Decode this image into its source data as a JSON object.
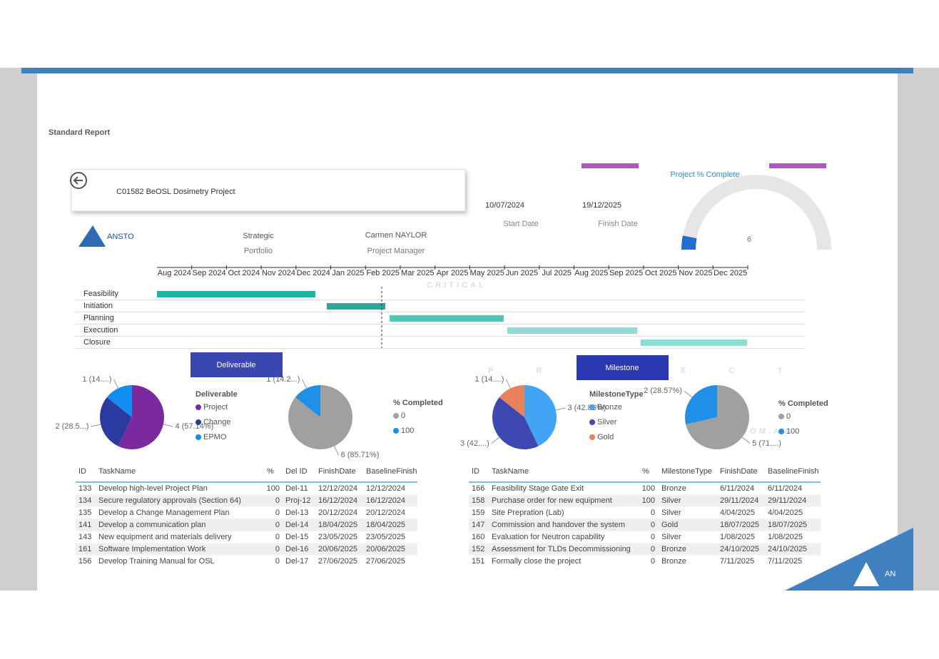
{
  "slide": {
    "title": "Standard Report",
    "watermark": [
      "CRITICAL",
      "PROJECT",
      ".COM.AU"
    ],
    "corner_logo": "AN"
  },
  "report": {
    "project": "C01582 BeOSL Dosimetry Project",
    "start_date": "10/07/2024",
    "start_label": "Start Date",
    "finish_date": "19/12/2025",
    "finish_label": "Finish Date",
    "logo": "ANSTO",
    "portfolio": "Strategic",
    "portfolio_label": "Portfolio",
    "manager": "Carmen NAYLOR",
    "manager_label": "Project Manager",
    "percent_title": "Project % Complete",
    "percent_value": 6
  },
  "gantt": {
    "months": [
      "Aug 2024",
      "Sep 2024",
      "Oct 2024",
      "Nov 2024",
      "Dec 2024",
      "Jan 2025",
      "Feb 2025",
      "Mar 2025",
      "Apr 2025",
      "May 2025",
      "Jun 2025",
      "Jul 2025",
      "Aug 2025",
      "Sep 2025",
      "Oct 2025",
      "Nov 2025",
      "Dec 2025"
    ],
    "phases": [
      "Feasibility",
      "Initiation",
      "Planning",
      "Execution",
      "Closure"
    ]
  },
  "sections": {
    "deliverable": "Deliverable",
    "milestone": "Milestone"
  },
  "pies": [
    {
      "legend_title": "Deliverable",
      "slices": [
        {
          "name": "Project",
          "value": 4,
          "pct": "(57.14%)",
          "color": "#7a2a9e"
        },
        {
          "name": "Change",
          "value": 2,
          "pct": "(28.5...)",
          "color": "#2a3aa0"
        },
        {
          "name": "EPMO",
          "value": 1,
          "pct": "(14....)",
          "color": "#128cf0"
        }
      ]
    },
    {
      "legend_title": "% Completed",
      "slices": [
        {
          "name": "0",
          "value": 6,
          "pct": "(85.71%)",
          "color": "#a0a0a0"
        },
        {
          "name": "100",
          "value": 1,
          "pct": "(14.2...)",
          "color": "#1f8fe8"
        }
      ]
    },
    {
      "legend_title": "MilestoneType",
      "slices": [
        {
          "name": "Bronze",
          "value": 3,
          "pct": "(42.86%)",
          "color": "#42a4f4"
        },
        {
          "name": "Silver",
          "value": 3,
          "pct": "(42....)",
          "color": "#3e48b2"
        },
        {
          "name": "Gold",
          "value": 1,
          "pct": "(14....)",
          "color": "#e8825a"
        }
      ]
    },
    {
      "legend_title": "% Completed",
      "slices": [
        {
          "name": "0",
          "value": 5,
          "pct": "(71....)",
          "color": "#a0a0a0"
        },
        {
          "name": "100",
          "value": 2,
          "pct": "(28.57%)",
          "color": "#1f8fe8"
        }
      ]
    }
  ],
  "tables": [
    {
      "columns": [
        "ID",
        "TaskName",
        "%",
        "Del ID",
        "FinishDate",
        "BaselineFinish"
      ],
      "rows": [
        [
          133,
          "Develop high-level Project Plan",
          100,
          "Del-11",
          "12/12/2024",
          "12/12/2024"
        ],
        [
          134,
          "Secure regulatory approvals (Section 64)",
          0,
          "Proj-12",
          "16/12/2024",
          "16/12/2024"
        ],
        [
          135,
          "Develop a Change Management Plan",
          0,
          "Del-13",
          "20/12/2024",
          "20/12/2024"
        ],
        [
          141,
          "Develop a communication plan",
          0,
          "Del-14",
          "18/04/2025",
          "18/04/2025"
        ],
        [
          143,
          "New equipment and materials delivery",
          0,
          "Del-15",
          "23/05/2025",
          "23/05/2025"
        ],
        [
          161,
          "Software Implementation Work",
          0,
          "Del-16",
          "20/06/2025",
          "20/06/2025"
        ],
        [
          156,
          "Develop Training Manual for OSL",
          0,
          "Del-17",
          "27/06/2025",
          "27/06/2025"
        ]
      ]
    },
    {
      "columns": [
        "ID",
        "TaskName",
        "%",
        "MilestoneType",
        "FinishDate",
        "BaselineFinish"
      ],
      "rows": [
        [
          166,
          "Feasibility Stage Gate Exit",
          100,
          "Bronze",
          "6/11/2024",
          "6/11/2024"
        ],
        [
          158,
          "Purchase order for new equipment",
          100,
          "Silver",
          "29/11/2024",
          "29/11/2024"
        ],
        [
          159,
          "Site Prepration (Lab)",
          0,
          "Silver",
          "4/04/2025",
          "4/04/2025"
        ],
        [
          147,
          "Commission and handover the system",
          0,
          "Gold",
          "18/07/2025",
          "18/07/2025"
        ],
        [
          160,
          "Evaluation for Neutron capability",
          0,
          "Silver",
          "1/08/2025",
          "1/08/2025"
        ],
        [
          152,
          "Assessment for TLDs Decommissioning",
          0,
          "Bronze",
          "24/10/2025",
          "24/10/2025"
        ],
        [
          151,
          "Formally close the project",
          0,
          "Bronze",
          "7/11/2025",
          "7/11/2025"
        ]
      ]
    }
  ]
}
